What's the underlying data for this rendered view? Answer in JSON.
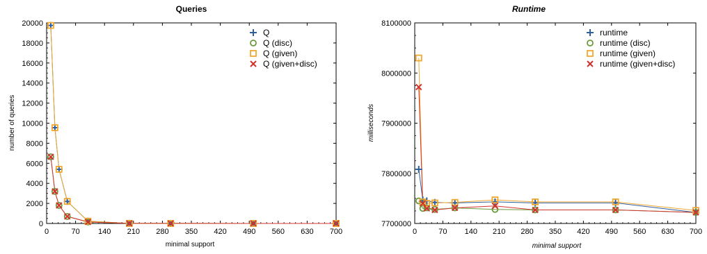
{
  "chart_data": [
    {
      "type": "line",
      "title": "Queries",
      "xlabel": "minimal support",
      "ylabel": "number of queries",
      "xlim": [
        0,
        700
      ],
      "ylim": [
        0,
        20000
      ],
      "x_ticks": [
        0,
        70,
        140,
        210,
        280,
        350,
        420,
        490,
        560,
        630,
        700
      ],
      "y_ticks": [
        0,
        2000,
        4000,
        6000,
        8000,
        10000,
        12000,
        14000,
        16000,
        18000,
        20000
      ],
      "x_tick_labels": [
        "0",
        "70",
        "140",
        "210",
        "280",
        "350",
        "420",
        "490",
        "560",
        "630",
        "700"
      ],
      "y_tick_labels": [
        "0",
        "2000",
        "4000",
        "6000",
        "8000",
        "10000",
        "12000",
        "14000",
        "16000",
        "18000",
        "20000"
      ],
      "legend_position": "top-right",
      "grid": false,
      "series": [
        {
          "name": "Q",
          "marker": "plus",
          "color": "#2d5f9e",
          "x": [
            10,
            20,
            30,
            50,
            100,
            200,
            300,
            500,
            700
          ],
          "y": [
            19750,
            9550,
            5400,
            2200,
            230,
            10,
            5,
            3,
            2
          ]
        },
        {
          "name": "Q (disc)",
          "marker": "circle",
          "color": "#6a9a3a",
          "x": [
            10,
            20,
            30,
            50,
            100,
            200,
            300,
            500,
            700
          ],
          "y": [
            6650,
            3200,
            1800,
            700,
            150,
            10,
            5,
            3,
            2
          ]
        },
        {
          "name": "Q (given)",
          "marker": "square",
          "color": "#f0a830",
          "x": [
            10,
            20,
            30,
            50,
            100,
            200,
            300,
            500,
            700
          ],
          "y": [
            19750,
            9550,
            5400,
            2200,
            230,
            10,
            5,
            3,
            2
          ]
        },
        {
          "name": "Q (given+disc)",
          "marker": "x",
          "color": "#d0342c",
          "x": [
            10,
            20,
            30,
            50,
            100,
            200,
            300,
            500,
            700
          ],
          "y": [
            6650,
            3200,
            1800,
            700,
            150,
            10,
            5,
            3,
            2
          ]
        }
      ]
    },
    {
      "type": "line",
      "title": "Runtime",
      "xlabel": "minimal support",
      "ylabel": "milliseconds",
      "xlim": [
        0,
        700
      ],
      "ylim": [
        7700000,
        8100000
      ],
      "x_ticks": [
        0,
        70,
        140,
        210,
        280,
        350,
        420,
        490,
        560,
        630,
        700
      ],
      "y_ticks": [
        7700000,
        7800000,
        7900000,
        8000000,
        8100000
      ],
      "x_tick_labels": [
        "0",
        "70",
        "140",
        "210",
        "280",
        "350",
        "420",
        "490",
        "560",
        "630",
        "700"
      ],
      "y_tick_labels": [
        "7700000",
        "7800000",
        "7900000",
        "8000000",
        "8100000"
      ],
      "legend_position": "top-right",
      "grid": false,
      "series": [
        {
          "name": "runtime",
          "marker": "plus",
          "color": "#2d5f9e",
          "x": [
            10,
            20,
            30,
            50,
            100,
            200,
            300,
            500,
            700
          ],
          "y": [
            7808000,
            7747000,
            7745000,
            7742000,
            7741000,
            7743000,
            7741000,
            7741000,
            7722000
          ]
        },
        {
          "name": "runtime (disc)",
          "marker": "circle",
          "color": "#6a9a3a",
          "x": [
            10,
            20,
            30,
            50,
            100,
            200,
            300,
            500,
            700
          ],
          "y": [
            7745000,
            7730000,
            7731000,
            7728000,
            7731000,
            7728000,
            7727000,
            7727000,
            7722000
          ]
        },
        {
          "name": "runtime (given)",
          "marker": "square",
          "color": "#f0a830",
          "x": [
            10,
            20,
            30,
            50,
            100,
            200,
            300,
            500,
            700
          ],
          "y": [
            8030000,
            7743000,
            7740000,
            7741000,
            7742000,
            7747000,
            7743000,
            7743000,
            7726000
          ]
        },
        {
          "name": "runtime (given+disc)",
          "marker": "x",
          "color": "#d0342c",
          "x": [
            10,
            20,
            30,
            50,
            100,
            200,
            300,
            500,
            700
          ],
          "y": [
            7972000,
            7740000,
            7730000,
            7727000,
            7731000,
            7735000,
            7727000,
            7727000,
            7722000
          ]
        }
      ]
    }
  ]
}
